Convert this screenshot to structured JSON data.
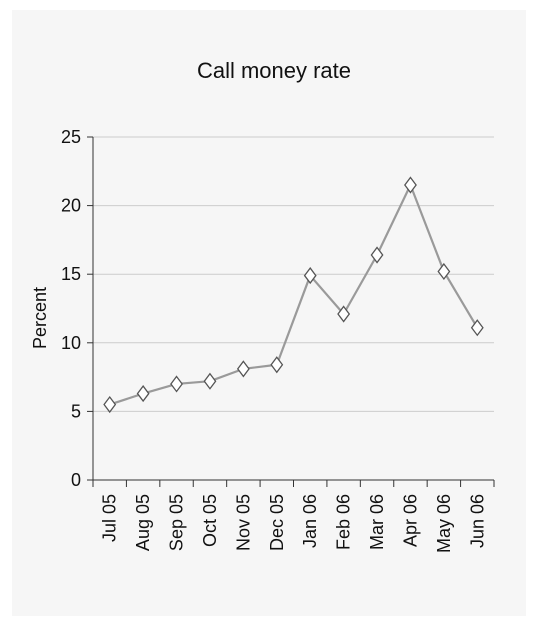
{
  "chart_data": {
    "type": "line",
    "title": "Call money rate",
    "xlabel": "",
    "ylabel": "Percent",
    "categories": [
      "Jul 05",
      "Aug 05",
      "Sep 05",
      "Oct 05",
      "Nov 05",
      "Dec 05",
      "Jan 06",
      "Feb 06",
      "Mar 06",
      "Apr 06",
      "May 06",
      "Jun 06"
    ],
    "series": [
      {
        "values": [
          5.5,
          6.3,
          7.0,
          7.2,
          8.1,
          8.4,
          14.9,
          12.1,
          16.4,
          21.5,
          15.2,
          11.1
        ]
      }
    ],
    "ylim": [
      0,
      25
    ],
    "yticks": [
      0,
      5,
      10,
      15,
      20,
      25
    ],
    "grid": true,
    "legend": "none",
    "colors": {
      "line": "#9a9a9a",
      "marker_fill": "#ffffff",
      "marker_stroke": "#555555",
      "grid": "#cccccc",
      "axis": "#333333",
      "panel": "#f6f6f6"
    }
  }
}
